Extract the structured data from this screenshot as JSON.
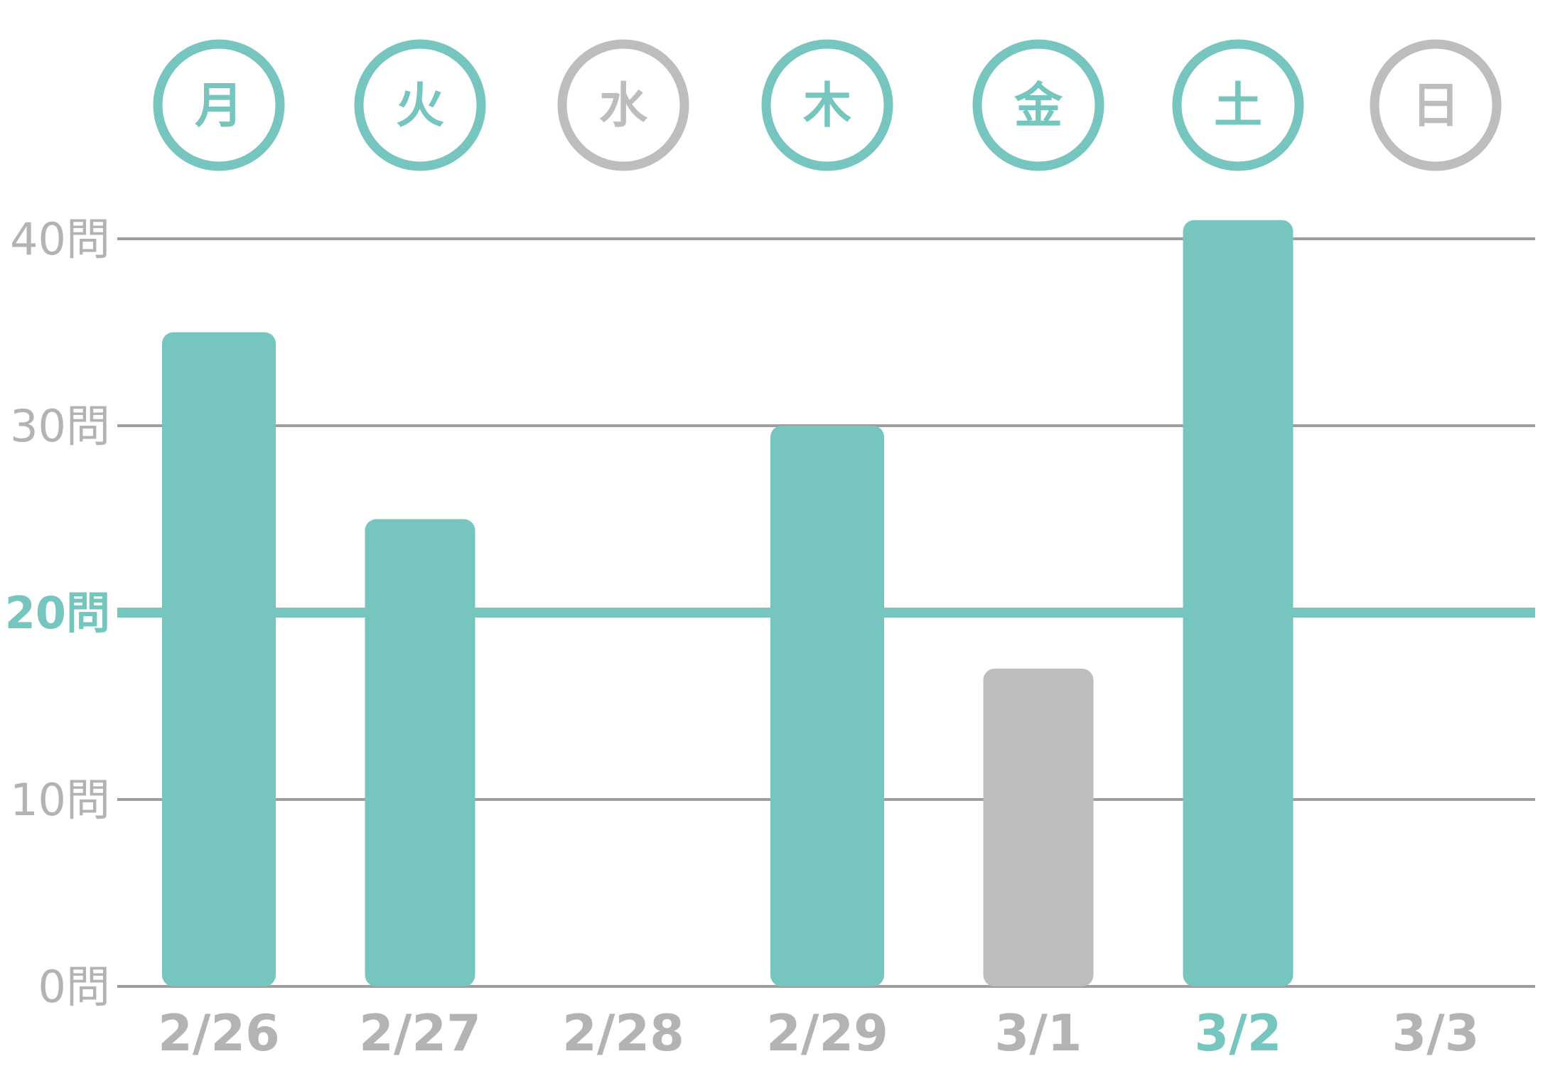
{
  "chart_data": {
    "type": "bar",
    "categories": [
      "2/26",
      "2/27",
      "2/28",
      "2/29",
      "3/1",
      "3/2",
      "3/3"
    ],
    "weekdays": [
      "月",
      "火",
      "水",
      "木",
      "金",
      "土",
      "日"
    ],
    "weekday_active": [
      true,
      true,
      false,
      true,
      true,
      true,
      false
    ],
    "values": [
      35,
      25,
      0,
      30,
      17,
      41,
      0
    ],
    "bar_colors": [
      "#76c5be",
      "#76c5be",
      null,
      "#76c5be",
      "#bdbdbd",
      "#76c5be",
      null
    ],
    "current_category": "3/2",
    "ylim": [
      0,
      40
    ],
    "yticks": [
      0,
      10,
      20,
      30,
      40
    ],
    "ytick_suffix": "問",
    "goal_line": 20,
    "grid": true,
    "colors": {
      "accent": "#76c5be",
      "inactive": "#bdbdbd",
      "grid": "#9e9e9e",
      "label": "#b3b3b3"
    }
  }
}
